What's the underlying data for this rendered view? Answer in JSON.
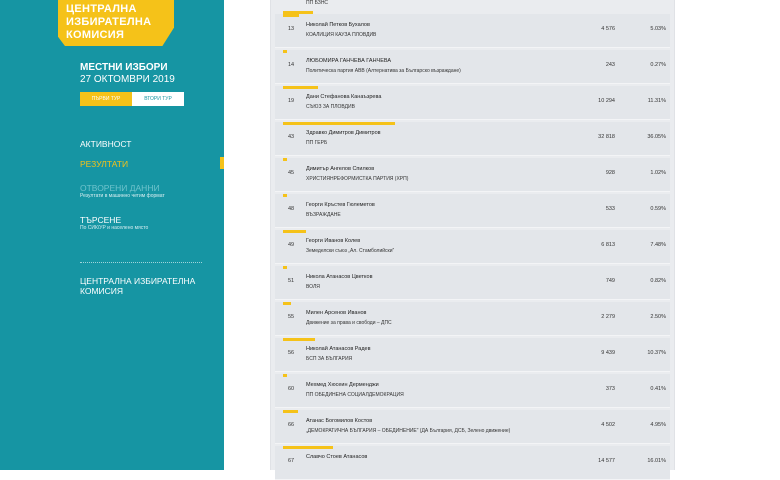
{
  "sidebar": {
    "logo_line1": "ЦЕНТРАЛНА",
    "logo_line2": "ИЗБИРАТЕЛНА",
    "logo_line3": "КОМИСИЯ",
    "election_title": "МЕСТНИ ИЗБОРИ",
    "election_date": "27 ОКТОМВРИ 2019",
    "round1": "ПЪРВИ ТУР",
    "round2": "ВТОРИ ТУР",
    "nav": {
      "activity": "АКТИВНОСТ",
      "results": "РЕЗУЛТАТИ",
      "open_data": "ОТВОРЕНИ ДАННИ",
      "open_data_sub": "Резултати в машинно четим формат",
      "search": "ТЪРСЕНЕ",
      "search_sub": "По СИК/УР и населено място",
      "cik_line1": "ЦЕНТРАЛНА ИЗБИРАТЕЛНА",
      "cik_line2": "КОМИСИЯ"
    },
    "accent": "#f5c219",
    "bg": "#1695a3"
  },
  "results": {
    "top_fragment": "ПП БЗНС",
    "rows": [
      {
        "num": "13",
        "name": "Николай Петков Бухалов",
        "party": "КОАЛИЦИЯ КАУЗА ПЛОВДИВ",
        "votes": "4 576",
        "pct": "5.03%",
        "share": 0.0503
      },
      {
        "num": "14",
        "name": "ЛЮБОМИРА ГАНЧЕВА ГАНЧЕВА",
        "party": "Политическа партия АВВ (Алтернатива за Българско възраждане)",
        "votes": "243",
        "pct": "0.27%",
        "share": 0.0027
      },
      {
        "num": "19",
        "name": "Дани Стефанова Канаъзрева",
        "party": "СЪЮЗ ЗА ПЛОВДИВ",
        "votes": "10 294",
        "pct": "11.31%",
        "share": 0.1131
      },
      {
        "num": "43",
        "name": "Здравко Димитров Димитров",
        "party": "ПП ГЕРБ",
        "votes": "32 818",
        "pct": "36.05%",
        "share": 0.3605
      },
      {
        "num": "45",
        "name": "Димитър Ангелов Спилков",
        "party": "ХРИСТИЯНРЕФОРМИСТКА ПАРТИЯ (ХРП)",
        "votes": "928",
        "pct": "1.02%",
        "share": 0.0102
      },
      {
        "num": "48",
        "name": "Георги Кръстев Гюлеметов",
        "party": "ВЪЗРАЖДАНЕ",
        "votes": "533",
        "pct": "0.59%",
        "share": 0.0059
      },
      {
        "num": "49",
        "name": "Георги Иванов Колев",
        "party": "Земеделски съюз „Ал. Стамболийски”",
        "votes": "6 813",
        "pct": "7.48%",
        "share": 0.0748
      },
      {
        "num": "51",
        "name": "Никола Атанасов Цветков",
        "party": "ВОЛЯ",
        "votes": "749",
        "pct": "0.82%",
        "share": 0.0082
      },
      {
        "num": "55",
        "name": "Милен Арсенов Иванов",
        "party": "Движение за права и свободи – ДПС",
        "votes": "2 279",
        "pct": "2.50%",
        "share": 0.025
      },
      {
        "num": "56",
        "name": "Николай Атанасов Радев",
        "party": "БСП ЗА БЪЛГАРИЯ",
        "votes": "9 439",
        "pct": "10.37%",
        "share": 0.1037
      },
      {
        "num": "60",
        "name": "Мехмед Хюсеин Дерменджи",
        "party": "ПП ОБЕДИНЕНА СОЦИАЛДЕМОКРАЦИЯ",
        "votes": "373",
        "pct": "0.41%",
        "share": 0.0041
      },
      {
        "num": "66",
        "name": "Атанас Богомилов Костов",
        "party": "„ДЕМОКРАТИЧНА БЪЛГАРИЯ – ОБЕДИНЕНИЕ” (ДА България, ДСБ, Зелено движение)",
        "votes": "4 502",
        "pct": "4.95%",
        "share": 0.0495
      },
      {
        "num": "67",
        "name": "Славчо Стоев Атанасов",
        "party": "",
        "votes": "14 577",
        "pct": "16.01%",
        "share": 0.1601
      }
    ]
  }
}
